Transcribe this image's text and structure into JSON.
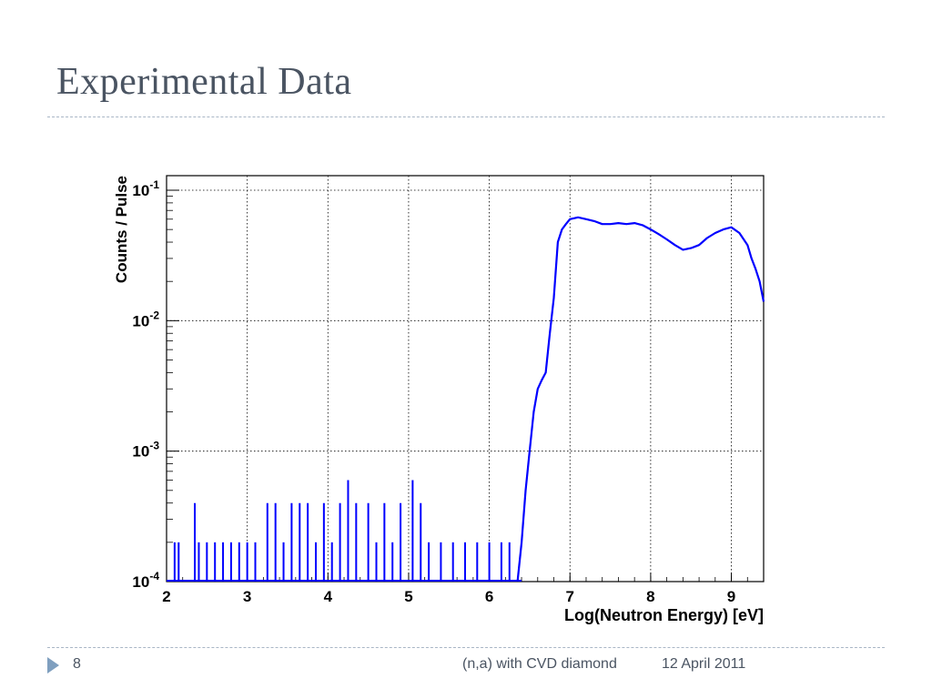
{
  "slide": {
    "title": "Experimental Data",
    "page_number": "8",
    "footer_title": "(n,a) with CVD diamond",
    "footer_date": "12 April 2011"
  },
  "colors": {
    "title": "#4a5462",
    "series": "#0000ff",
    "footer_arrow": "#7f9fbf"
  },
  "chart_data": {
    "type": "line",
    "title": "",
    "xlabel": "Log(Neutron Energy) [eV]",
    "ylabel": "Counts / Pulse",
    "xlim": [
      2,
      9.4
    ],
    "ylim": [
      0.0001,
      0.1
    ],
    "yscale": "log",
    "grid": true,
    "x_ticks": [
      2,
      3,
      4,
      5,
      6,
      7,
      8,
      9
    ],
    "x_tick_labels": [
      "2",
      "3",
      "4",
      "5",
      "6",
      "7",
      "8",
      "9"
    ],
    "y_ticks": [
      0.0001,
      0.001,
      0.01,
      0.1
    ],
    "y_tick_labels": [
      {
        "base": "10",
        "exp": "-4"
      },
      {
        "base": "10",
        "exp": "-3"
      },
      {
        "base": "10",
        "exp": "-2"
      },
      {
        "base": "10",
        "exp": "-1"
      }
    ],
    "series": [
      {
        "x": [
          6.35,
          6.4,
          6.45,
          6.5,
          6.55,
          6.6,
          6.65,
          6.7,
          6.75,
          6.8,
          6.85,
          6.9,
          6.95,
          7.0,
          7.1,
          7.2,
          7.3,
          7.4,
          7.5,
          7.6,
          7.7,
          7.8,
          7.9,
          8.0,
          8.1,
          8.2,
          8.3,
          8.4,
          8.5,
          8.6,
          8.7,
          8.8,
          8.9,
          9.0,
          9.1,
          9.2,
          9.25,
          9.3,
          9.35,
          9.4
        ],
        "y": [
          0.0001,
          0.0002,
          0.0005,
          0.001,
          0.002,
          0.003,
          0.0035,
          0.004,
          0.008,
          0.015,
          0.04,
          0.05,
          0.055,
          0.06,
          0.062,
          0.06,
          0.058,
          0.055,
          0.055,
          0.056,
          0.055,
          0.056,
          0.054,
          0.05,
          0.046,
          0.042,
          0.038,
          0.035,
          0.036,
          0.038,
          0.043,
          0.047,
          0.05,
          0.052,
          0.047,
          0.038,
          0.03,
          0.025,
          0.02,
          0.014
        ]
      }
    ],
    "low_energy_spikes": {
      "x": [
        2.1,
        2.15,
        2.35,
        2.4,
        2.5,
        2.6,
        2.7,
        2.8,
        2.9,
        3.0,
        3.1,
        3.25,
        3.35,
        3.45,
        3.55,
        3.65,
        3.75,
        3.85,
        3.95,
        4.05,
        4.15,
        4.25,
        4.35,
        4.5,
        4.6,
        4.7,
        4.8,
        4.9,
        5.05,
        5.15,
        5.25,
        5.4,
        5.55,
        5.7,
        5.85,
        6.0,
        6.15,
        6.25
      ],
      "y": [
        0.0002,
        0.0002,
        0.0004,
        0.0002,
        0.0002,
        0.0002,
        0.0002,
        0.0002,
        0.0002,
        0.0002,
        0.0002,
        0.0004,
        0.0004,
        0.0002,
        0.0004,
        0.0004,
        0.0004,
        0.0002,
        0.0004,
        0.0002,
        0.0004,
        0.0006,
        0.0004,
        0.0004,
        0.0002,
        0.0004,
        0.0002,
        0.0004,
        0.0006,
        0.0004,
        0.0002,
        0.0002,
        0.0002,
        0.0002,
        0.0002,
        0.0002,
        0.0002,
        0.0002
      ]
    }
  }
}
